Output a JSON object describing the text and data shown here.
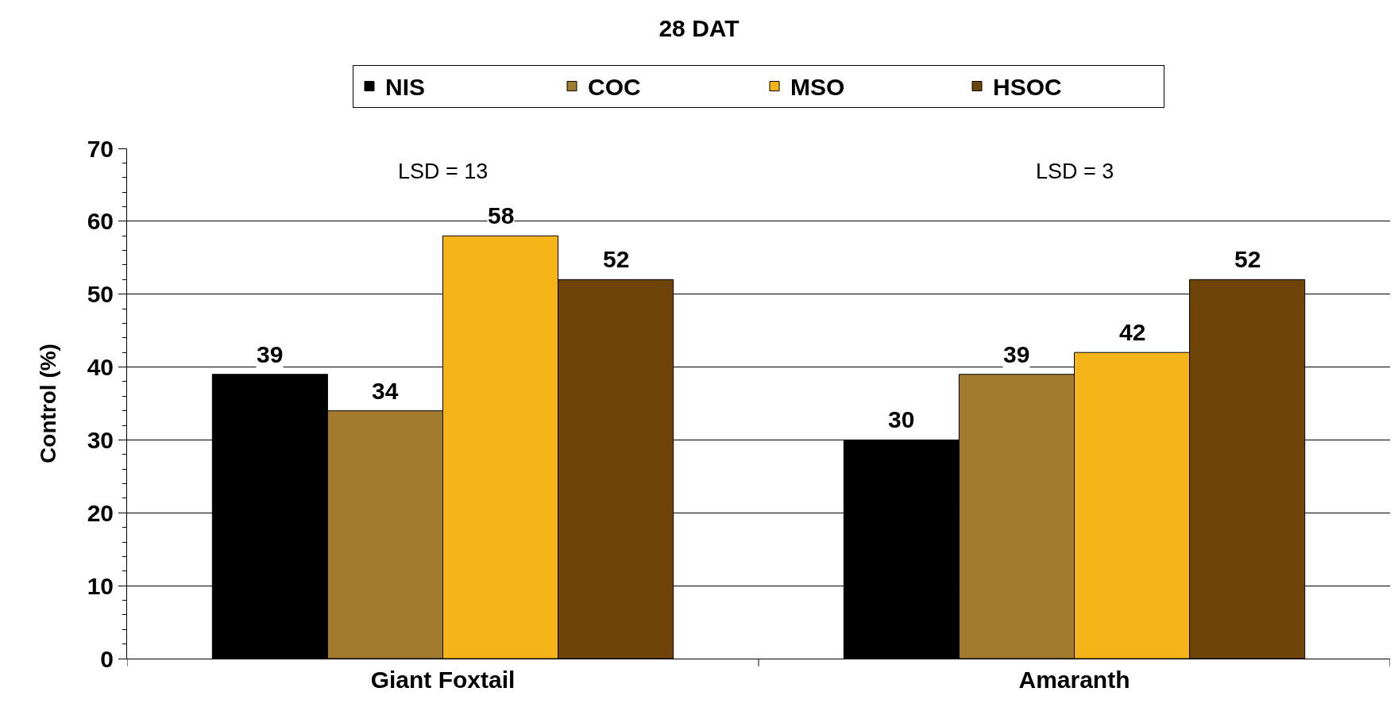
{
  "chart_data": {
    "type": "bar",
    "title": "28 DAT",
    "ylabel": "Control (%)",
    "categories": [
      "Giant Foxtail",
      "Amaranth"
    ],
    "series": [
      {
        "name": "NIS",
        "color": "#000000",
        "values": [
          39,
          30
        ]
      },
      {
        "name": "COC",
        "color": "#a37b2e",
        "values": [
          34,
          39
        ]
      },
      {
        "name": "MSO",
        "color": "#f5b418",
        "values": [
          58,
          42
        ]
      },
      {
        "name": "HSOC",
        "color": "#6e4408",
        "values": [
          52,
          52
        ]
      }
    ],
    "ylim": [
      0,
      70
    ],
    "yticks": [
      0,
      10,
      20,
      30,
      40,
      50,
      60,
      70
    ],
    "grid": "y",
    "legend": "top",
    "data_labels": true,
    "annotations": [
      "LSD = 13",
      "LSD = 3"
    ]
  }
}
